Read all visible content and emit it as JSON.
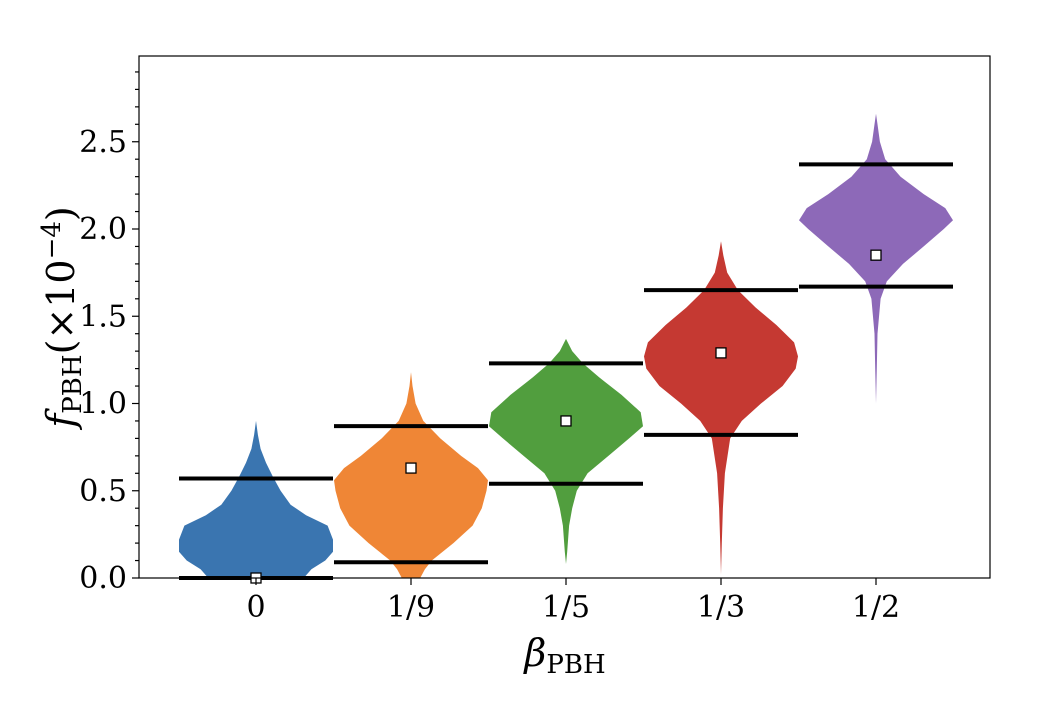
{
  "chart_data": {
    "type": "violin",
    "x_label": {
      "main": "β",
      "sub": "PBH"
    },
    "y_label": {
      "main": "f",
      "sub": "PBH",
      "suffix": "(×10",
      "exp": "−4",
      "close": ")"
    },
    "categories": [
      "0",
      "1/9",
      "1/5",
      "1/3",
      "1/2"
    ],
    "y_ticks": [
      "0.0",
      "0.5",
      "1.0",
      "1.5",
      "2.0",
      "2.5"
    ],
    "y_tick_values": [
      0.0,
      0.5,
      1.0,
      1.5,
      2.0,
      2.5
    ],
    "ylim": [
      0.0,
      2.97
    ],
    "grid": false,
    "colors": [
      "#3a75b0",
      "#ef8636",
      "#519e3e",
      "#c53932",
      "#8d69b8"
    ],
    "series": [
      {
        "median": 0.0,
        "lower": 0.0,
        "upper": 0.57,
        "min": 0.0,
        "max": 0.9,
        "profile": [
          [
            0.0,
            0.62
          ],
          [
            0.05,
            0.72
          ],
          [
            0.1,
            0.9
          ],
          [
            0.15,
            1.0
          ],
          [
            0.22,
            1.0
          ],
          [
            0.3,
            0.93
          ],
          [
            0.36,
            0.65
          ],
          [
            0.42,
            0.45
          ],
          [
            0.5,
            0.32
          ],
          [
            0.58,
            0.22
          ],
          [
            0.66,
            0.13
          ],
          [
            0.74,
            0.06
          ],
          [
            0.82,
            0.025
          ],
          [
            0.9,
            0.0
          ]
        ]
      },
      {
        "median": 0.63,
        "lower": 0.09,
        "upper": 0.87,
        "min": 0.0,
        "max": 1.18,
        "profile": [
          [
            0.0,
            0.12
          ],
          [
            0.05,
            0.18
          ],
          [
            0.1,
            0.27
          ],
          [
            0.2,
            0.55
          ],
          [
            0.3,
            0.8
          ],
          [
            0.4,
            0.92
          ],
          [
            0.5,
            0.98
          ],
          [
            0.56,
            1.0
          ],
          [
            0.63,
            0.87
          ],
          [
            0.7,
            0.65
          ],
          [
            0.8,
            0.38
          ],
          [
            0.9,
            0.16
          ],
          [
            1.0,
            0.06
          ],
          [
            1.1,
            0.02
          ],
          [
            1.18,
            0.0
          ]
        ]
      },
      {
        "median": 0.9,
        "lower": 0.54,
        "upper": 1.23,
        "min": 0.08,
        "max": 1.37,
        "profile": [
          [
            0.08,
            0.0
          ],
          [
            0.15,
            0.015
          ],
          [
            0.3,
            0.04
          ],
          [
            0.4,
            0.08
          ],
          [
            0.5,
            0.14
          ],
          [
            0.6,
            0.28
          ],
          [
            0.7,
            0.55
          ],
          [
            0.8,
            0.82
          ],
          [
            0.87,
            1.0
          ],
          [
            0.95,
            0.97
          ],
          [
            1.05,
            0.72
          ],
          [
            1.15,
            0.43
          ],
          [
            1.23,
            0.22
          ],
          [
            1.3,
            0.08
          ],
          [
            1.37,
            0.0
          ]
        ]
      },
      {
        "median": 1.29,
        "lower": 0.82,
        "upper": 1.65,
        "min": 0.02,
        "max": 1.93,
        "profile": [
          [
            0.02,
            0.0
          ],
          [
            0.2,
            0.01
          ],
          [
            0.4,
            0.025
          ],
          [
            0.6,
            0.05
          ],
          [
            0.8,
            0.12
          ],
          [
            0.9,
            0.27
          ],
          [
            1.0,
            0.52
          ],
          [
            1.1,
            0.8
          ],
          [
            1.2,
            0.97
          ],
          [
            1.27,
            1.0
          ],
          [
            1.35,
            0.95
          ],
          [
            1.45,
            0.72
          ],
          [
            1.55,
            0.45
          ],
          [
            1.65,
            0.22
          ],
          [
            1.75,
            0.08
          ],
          [
            1.85,
            0.03
          ],
          [
            1.93,
            0.0
          ]
        ]
      },
      {
        "median": 1.85,
        "lower": 1.67,
        "upper": 2.37,
        "min": 1.0,
        "max": 2.66,
        "profile": [
          [
            1.0,
            0.0
          ],
          [
            1.2,
            0.01
          ],
          [
            1.4,
            0.02
          ],
          [
            1.6,
            0.06
          ],
          [
            1.7,
            0.14
          ],
          [
            1.8,
            0.35
          ],
          [
            1.9,
            0.62
          ],
          [
            2.0,
            0.88
          ],
          [
            2.05,
            1.0
          ],
          [
            2.12,
            0.9
          ],
          [
            2.2,
            0.62
          ],
          [
            2.3,
            0.32
          ],
          [
            2.4,
            0.12
          ],
          [
            2.5,
            0.05
          ],
          [
            2.6,
            0.02
          ],
          [
            2.66,
            0.0
          ]
        ]
      }
    ]
  }
}
